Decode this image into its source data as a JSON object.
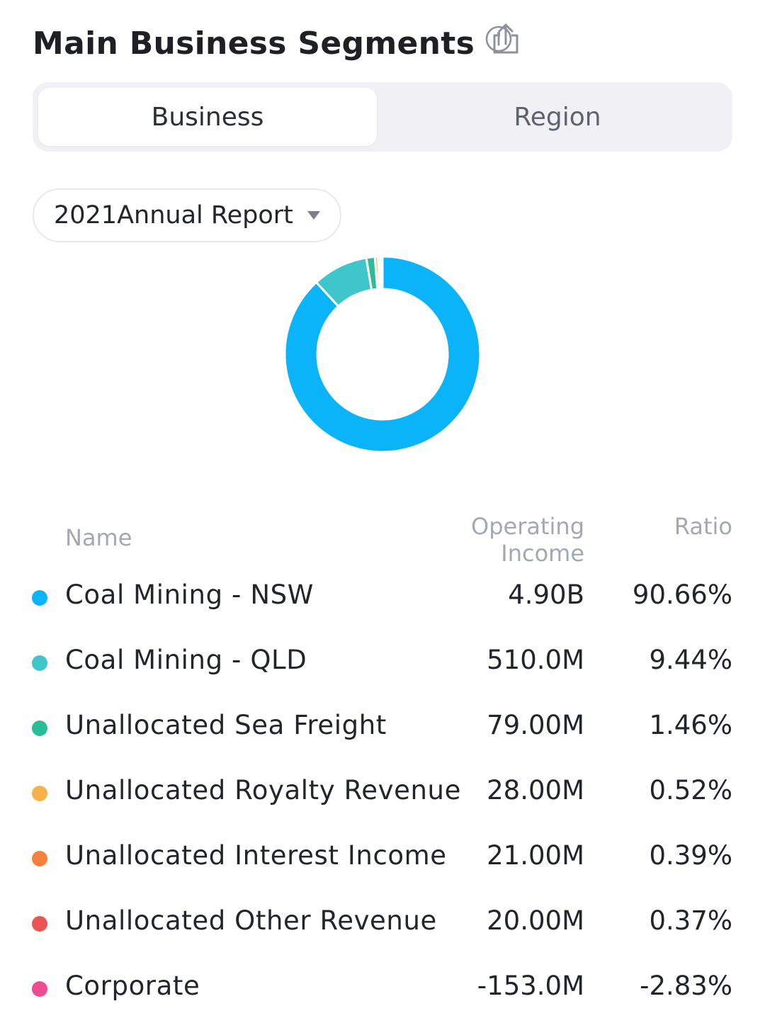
{
  "header": {
    "title": "Main Business Segments",
    "info_icon": "info-icon",
    "share_icon": "share-icon"
  },
  "tabs": [
    {
      "label": "Business",
      "active": true
    },
    {
      "label": "Region",
      "active": false
    }
  ],
  "period_select": {
    "value": "2021Annual Report",
    "icon": "caret-down-icon"
  },
  "table": {
    "headers": {
      "name": "Name",
      "income_line1": "Operating",
      "income_line2": "Income",
      "ratio": "Ratio"
    },
    "rows": [
      {
        "name": "Coal Mining - NSW",
        "income": "4.90B",
        "ratio": "90.66%",
        "color": "#0bb3f8"
      },
      {
        "name": "Coal Mining - QLD",
        "income": "510.0M",
        "ratio": "9.44%",
        "color": "#3ec6cb"
      },
      {
        "name": "Unallocated Sea Freight",
        "income": "79.00M",
        "ratio": "1.46%",
        "color": "#2bbc9a"
      },
      {
        "name": "Unallocated Royalty Revenue",
        "income": "28.00M",
        "ratio": "0.52%",
        "color": "#f6b24a"
      },
      {
        "name": "Unallocated Interest Income",
        "income": "21.00M",
        "ratio": "0.39%",
        "color": "#f6813e"
      },
      {
        "name": "Unallocated Other Revenue",
        "income": "20.00M",
        "ratio": "0.37%",
        "color": "#ec5454"
      },
      {
        "name": "Corporate",
        "income": "-153.0M",
        "ratio": "-2.83%",
        "color": "#f04b92"
      }
    ]
  },
  "chart_data": {
    "type": "pie",
    "style": "donut",
    "categories": [
      "Coal Mining - NSW",
      "Coal Mining - QLD",
      "Unallocated Sea Freight",
      "Unallocated Royalty Revenue",
      "Unallocated Interest Income",
      "Unallocated Other Revenue",
      "Corporate"
    ],
    "values": [
      90.66,
      9.44,
      1.46,
      0.52,
      0.39,
      0.37,
      -2.83
    ],
    "colors": [
      "#0bb3f8",
      "#3ec6cb",
      "#2bbc9a",
      "#f6b24a",
      "#f6813e",
      "#ec5454",
      "#f04b92"
    ],
    "title": ""
  }
}
